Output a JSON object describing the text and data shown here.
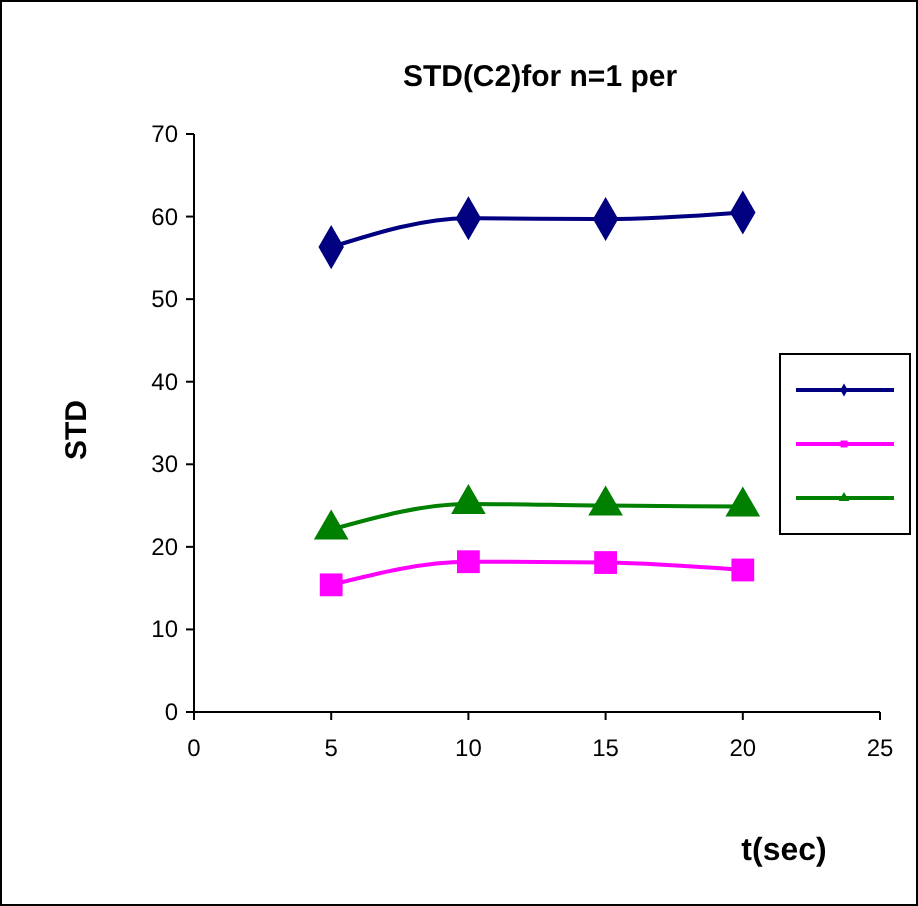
{
  "chart_data": {
    "type": "line",
    "title": "STD(C2)for n=1 per",
    "xlabel": "t(sec)",
    "ylabel": "STD",
    "x": [
      5,
      10,
      15,
      20
    ],
    "series": [
      {
        "color": "#000080",
        "marker": "diamond",
        "values": [
          56.3,
          59.8,
          59.7,
          60.5
        ]
      },
      {
        "color": "#ff00ff",
        "marker": "square",
        "values": [
          15.4,
          18.2,
          18.1,
          17.2
        ]
      },
      {
        "color": "#008000",
        "marker": "triangle",
        "values": [
          22.1,
          25.2,
          25.0,
          24.9
        ]
      }
    ],
    "xlim": [
      0,
      25
    ],
    "xticks": [
      0,
      5,
      10,
      15,
      20,
      25
    ],
    "ylim": [
      0,
      70
    ],
    "yticks": [
      0,
      10,
      20,
      30,
      40,
      50,
      60,
      70
    ],
    "grid": false,
    "line_style": "solid"
  }
}
